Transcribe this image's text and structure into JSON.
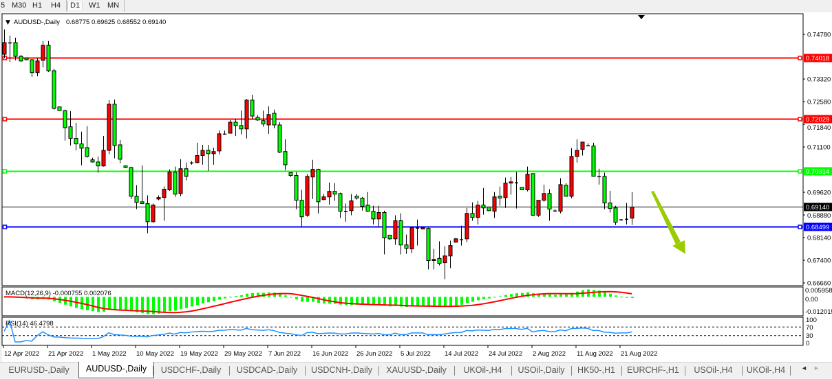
{
  "toolbar": {
    "timeframes": [
      "5",
      "M30",
      "H1",
      "H4",
      "D1",
      "W1",
      "MN"
    ],
    "active": "D1"
  },
  "chart": {
    "symbol_title": "AUDUSD-,Daily",
    "ohlc_text": "0.68775 0.69625 0.68552 0.69140",
    "macd_label": "MACD(12,26,9) -0.000755 0.002076",
    "rsi_label": "RSI(14) 46.4798"
  },
  "chart_data": {
    "type": "candlestick",
    "symbol": "AUDUSD-",
    "timeframe": "Daily",
    "colors": {
      "bull": "#ff0000",
      "bear": "#00ff00",
      "outline": "#000000"
    },
    "ylim": [
      0.666,
      0.75
    ],
    "price_axis_labels": [
      "0.74780",
      "0.73320",
      "0.72580",
      "0.71840",
      "0.71100",
      "0.69620",
      "0.68880",
      "0.68140",
      "0.67400",
      "0.66660"
    ],
    "levels": [
      {
        "price": "0.74018",
        "color": "#ff0000"
      },
      {
        "price": "0.72029",
        "color": "#ff0000"
      },
      {
        "price": "0.70314",
        "color": "#00ff00"
      },
      {
        "price": "0.68499",
        "color": "#0000ff"
      }
    ],
    "current_price": {
      "price": "0.69140",
      "color": "#000000"
    },
    "x_labels": [
      {
        "label": "12 Apr 2022",
        "index": 0
      },
      {
        "label": "21 Apr 2022",
        "index": 8
      },
      {
        "label": "1 May 2022",
        "index": 16
      },
      {
        "label": "10 May 2022",
        "index": 24
      },
      {
        "label": "19 May 2022",
        "index": 32
      },
      {
        "label": "29 May 2022",
        "index": 40
      },
      {
        "label": "7 Jun 2022",
        "index": 48
      },
      {
        "label": "16 Jun 2022",
        "index": 56
      },
      {
        "label": "26 Jun 2022",
        "index": 64
      },
      {
        "label": "5 Jul 2022",
        "index": 72
      },
      {
        "label": "14 Jul 2022",
        "index": 80
      },
      {
        "label": "24 Jul 2022",
        "index": 88
      },
      {
        "label": "2 Aug 2022",
        "index": 96
      },
      {
        "label": "11 Aug 2022",
        "index": 104
      },
      {
        "label": "21 Aug 2022",
        "index": 112
      }
    ],
    "ohlc_fields": [
      "open",
      "high",
      "low",
      "close"
    ],
    "candles": [
      [
        0.7413,
        0.7494,
        0.74,
        0.7451
      ],
      [
        0.7451,
        0.7474,
        0.7388,
        0.7451
      ],
      [
        0.7451,
        0.7467,
        0.7393,
        0.7406
      ],
      [
        0.7406,
        0.7411,
        0.7388,
        0.7391
      ],
      [
        0.74,
        0.74,
        0.7393,
        0.7395
      ],
      [
        0.7395,
        0.7397,
        0.7339,
        0.7353
      ],
      [
        0.7353,
        0.74,
        0.7341,
        0.7391
      ],
      [
        0.7393,
        0.7456,
        0.737,
        0.7442
      ],
      [
        0.7442,
        0.7456,
        0.7355,
        0.7359
      ],
      [
        0.7359,
        0.7366,
        0.7232,
        0.7236
      ],
      [
        0.7241,
        0.7241,
        0.7229,
        0.7229
      ],
      [
        0.7229,
        0.7232,
        0.7131,
        0.7173
      ],
      [
        0.7176,
        0.7227,
        0.7115,
        0.7138
      ],
      [
        0.7138,
        0.7189,
        0.7099,
        0.712
      ],
      [
        0.712,
        0.716,
        0.705,
        0.7106
      ],
      [
        0.7108,
        0.7178,
        0.7075,
        0.7079
      ],
      [
        0.7068,
        0.7075,
        0.7059,
        0.7061
      ],
      [
        0.7061,
        0.7079,
        0.7026,
        0.7048
      ],
      [
        0.7048,
        0.7146,
        0.7046,
        0.7099
      ],
      [
        0.7099,
        0.7263,
        0.7086,
        0.725
      ],
      [
        0.725,
        0.7265,
        0.7073,
        0.7115
      ],
      [
        0.7117,
        0.7133,
        0.7057,
        0.707
      ],
      [
        0.7048,
        0.705,
        0.7041,
        0.7043
      ],
      [
        0.7043,
        0.7046,
        0.694,
        0.6949
      ],
      [
        0.6949,
        0.6985,
        0.6907,
        0.6929
      ],
      [
        0.6931,
        0.705,
        0.6925,
        0.6925
      ],
      [
        0.6925,
        0.6952,
        0.6828,
        0.6866
      ],
      [
        0.6866,
        0.6925,
        0.6862,
        0.692
      ],
      [
        0.694,
        0.6952,
        0.6936,
        0.6945
      ],
      [
        0.6945,
        0.6981,
        0.6869,
        0.6972
      ],
      [
        0.697,
        0.7037,
        0.6967,
        0.7028
      ],
      [
        0.7028,
        0.7046,
        0.6947,
        0.6956
      ],
      [
        0.6958,
        0.707,
        0.6949,
        0.7039
      ],
      [
        0.7039,
        0.7059,
        0.7001,
        0.7014
      ],
      [
        0.7059,
        0.7064,
        0.7052,
        0.7059
      ],
      [
        0.7059,
        0.7124,
        0.7057,
        0.7082
      ],
      [
        0.7082,
        0.7117,
        0.7052,
        0.7099
      ],
      [
        0.7099,
        0.7117,
        0.7032,
        0.7088
      ],
      [
        0.7088,
        0.7108,
        0.7052,
        0.7095
      ],
      [
        0.7097,
        0.7164,
        0.7086,
        0.7153
      ],
      [
        0.7153,
        0.7164,
        0.7151,
        0.7153
      ],
      [
        0.7155,
        0.7198,
        0.7155,
        0.7191
      ],
      [
        0.7191,
        0.7202,
        0.7146,
        0.718
      ],
      [
        0.718,
        0.7229,
        0.7151,
        0.7169
      ],
      [
        0.7169,
        0.7267,
        0.7138,
        0.7263
      ],
      [
        0.7263,
        0.7281,
        0.72,
        0.7211
      ],
      [
        0.7207,
        0.7214,
        0.7196,
        0.7198
      ],
      [
        0.7196,
        0.7229,
        0.7176,
        0.7185
      ],
      [
        0.7182,
        0.7243,
        0.7153,
        0.7216
      ],
      [
        0.722,
        0.7232,
        0.7171,
        0.7182
      ],
      [
        0.7182,
        0.7191,
        0.709,
        0.7093
      ],
      [
        0.7095,
        0.7135,
        0.7034,
        0.7052
      ],
      [
        0.7026,
        0.7026,
        0.7012,
        0.7017
      ],
      [
        0.7017,
        0.7028,
        0.6907,
        0.6936
      ],
      [
        0.6936,
        0.697,
        0.6851,
        0.6882
      ],
      [
        0.6887,
        0.7021,
        0.6882,
        0.7014
      ],
      [
        0.7012,
        0.7068,
        0.694,
        0.7037
      ],
      [
        0.7037,
        0.7039,
        0.6893,
        0.6931
      ],
      [
        0.6938,
        0.6956,
        0.6936,
        0.6947
      ],
      [
        0.6947,
        0.6994,
        0.6922,
        0.6965
      ],
      [
        0.6965,
        0.6992,
        0.6934,
        0.6956
      ],
      [
        0.6958,
        0.6961,
        0.6878,
        0.69
      ],
      [
        0.69,
        0.6925,
        0.6866,
        0.69
      ],
      [
        0.6902,
        0.6956,
        0.6887,
        0.6934
      ],
      [
        0.6949,
        0.6956,
        0.6938,
        0.6943
      ],
      [
        0.6943,
        0.6947,
        0.6902,
        0.6916
      ],
      [
        0.692,
        0.6963,
        0.6898,
        0.69
      ],
      [
        0.69,
        0.6918,
        0.6857,
        0.6875
      ],
      [
        0.6875,
        0.6918,
        0.6851,
        0.6896
      ],
      [
        0.6896,
        0.6902,
        0.6759,
        0.6813
      ],
      [
        0.6822,
        0.6822,
        0.6806,
        0.681
      ],
      [
        0.681,
        0.6887,
        0.679,
        0.6869
      ],
      [
        0.6869,
        0.6893,
        0.6759,
        0.679
      ],
      [
        0.679,
        0.6824,
        0.6761,
        0.6779
      ],
      [
        0.6777,
        0.6846,
        0.6763,
        0.6846
      ],
      [
        0.6846,
        0.6873,
        0.6788,
        0.6846
      ],
      [
        0.6842,
        0.6846,
        0.6842,
        0.6846
      ],
      [
        0.6844,
        0.6846,
        0.671,
        0.6739
      ],
      [
        0.6739,
        0.6777,
        0.671,
        0.6743
      ],
      [
        0.6746,
        0.6802,
        0.6723,
        0.673
      ],
      [
        0.6732,
        0.6786,
        0.6678,
        0.6754
      ],
      [
        0.6754,
        0.6804,
        0.6714,
        0.6788
      ],
      [
        0.6799,
        0.6813,
        0.6797,
        0.681
      ],
      [
        0.6808,
        0.6853,
        0.6788,
        0.6808
      ],
      [
        0.681,
        0.6911,
        0.6799,
        0.6893
      ],
      [
        0.6893,
        0.6929,
        0.6869,
        0.688
      ],
      [
        0.688,
        0.6934,
        0.6857,
        0.692
      ],
      [
        0.692,
        0.6976,
        0.6889,
        0.6911
      ],
      [
        0.6914,
        0.6916,
        0.69,
        0.6902
      ],
      [
        0.69,
        0.6963,
        0.6878,
        0.6947
      ],
      [
        0.6949,
        0.6981,
        0.6918,
        0.6943
      ],
      [
        0.6945,
        0.701,
        0.6911,
        0.6992
      ],
      [
        0.6992,
        0.7012,
        0.6954,
        0.6996
      ],
      [
        0.6994,
        0.7028,
        0.6909,
        0.6994
      ],
      [
        0.6978,
        0.6978,
        0.697,
        0.697
      ],
      [
        0.697,
        0.7046,
        0.6965,
        0.7021
      ],
      [
        0.7023,
        0.7023,
        0.6884,
        0.6887
      ],
      [
        0.6887,
        0.6936,
        0.6882,
        0.6936
      ],
      [
        0.6936,
        0.6987,
        0.6931,
        0.6958
      ],
      [
        0.6958,
        0.6972,
        0.6869,
        0.6907
      ],
      [
        0.6902,
        0.6907,
        0.6898,
        0.6902
      ],
      [
        0.69,
        0.7008,
        0.6893,
        0.6987
      ],
      [
        0.6985,
        0.6992,
        0.6949,
        0.6949
      ],
      [
        0.6949,
        0.7106,
        0.6943,
        0.7079
      ],
      [
        0.7079,
        0.7135,
        0.7059,
        0.7099
      ],
      [
        0.7102,
        0.7126,
        0.7082,
        0.7126
      ],
      [
        0.7115,
        0.7122,
        0.7113,
        0.7113
      ],
      [
        0.7113,
        0.7124,
        0.7014,
        0.7014
      ],
      [
        0.7014,
        0.7039,
        0.6987,
        0.7014
      ],
      [
        0.7014,
        0.7026,
        0.6907,
        0.6927
      ],
      [
        0.6927,
        0.6967,
        0.6896,
        0.6909
      ],
      [
        0.6911,
        0.6918,
        0.6855,
        0.6864
      ],
      [
        0.6873,
        0.6875,
        0.6869,
        0.6873
      ],
      [
        0.6875,
        0.6927,
        0.6857,
        0.6875
      ],
      [
        0.68775,
        0.69625,
        0.68552,
        0.6914
      ]
    ],
    "macd": {
      "params": [
        12,
        26,
        9
      ],
      "hist_color": "#00ff00",
      "signal_color": "#ff0000",
      "axis_labels": [
        "0.005958",
        "0.00",
        "-0.012015"
      ],
      "ylim": [
        -0.0125,
        0.0065
      ]
    },
    "rsi": {
      "period": 14,
      "color": "#1e90ff",
      "levels": [
        70,
        30
      ],
      "axis_labels": [
        "100",
        "70",
        "30",
        "0"
      ],
      "ylim": [
        0,
        100
      ]
    },
    "annotation_arrow": {
      "color": "#9acd00",
      "direction": "down"
    }
  },
  "tabs": [
    {
      "label": "EURUSD-,Daily"
    },
    {
      "label": "AUDUSD-,Daily",
      "active": true
    },
    {
      "label": "USDCHF-,Daily"
    },
    {
      "label": "USDCAD-,Daily"
    },
    {
      "label": "USDCNH-,Daily"
    },
    {
      "label": "XAUUSD-,Daily"
    },
    {
      "label": "UKOil-,H4"
    },
    {
      "label": "USOil-,Daily"
    },
    {
      "label": "HK50-,H1"
    },
    {
      "label": "EURCHF-,H1"
    },
    {
      "label": "USOil-,H4"
    },
    {
      "label": "UKOil-,H4"
    }
  ],
  "tab_scroll": {
    "left_icon": "◄",
    "right_icon": "►"
  }
}
